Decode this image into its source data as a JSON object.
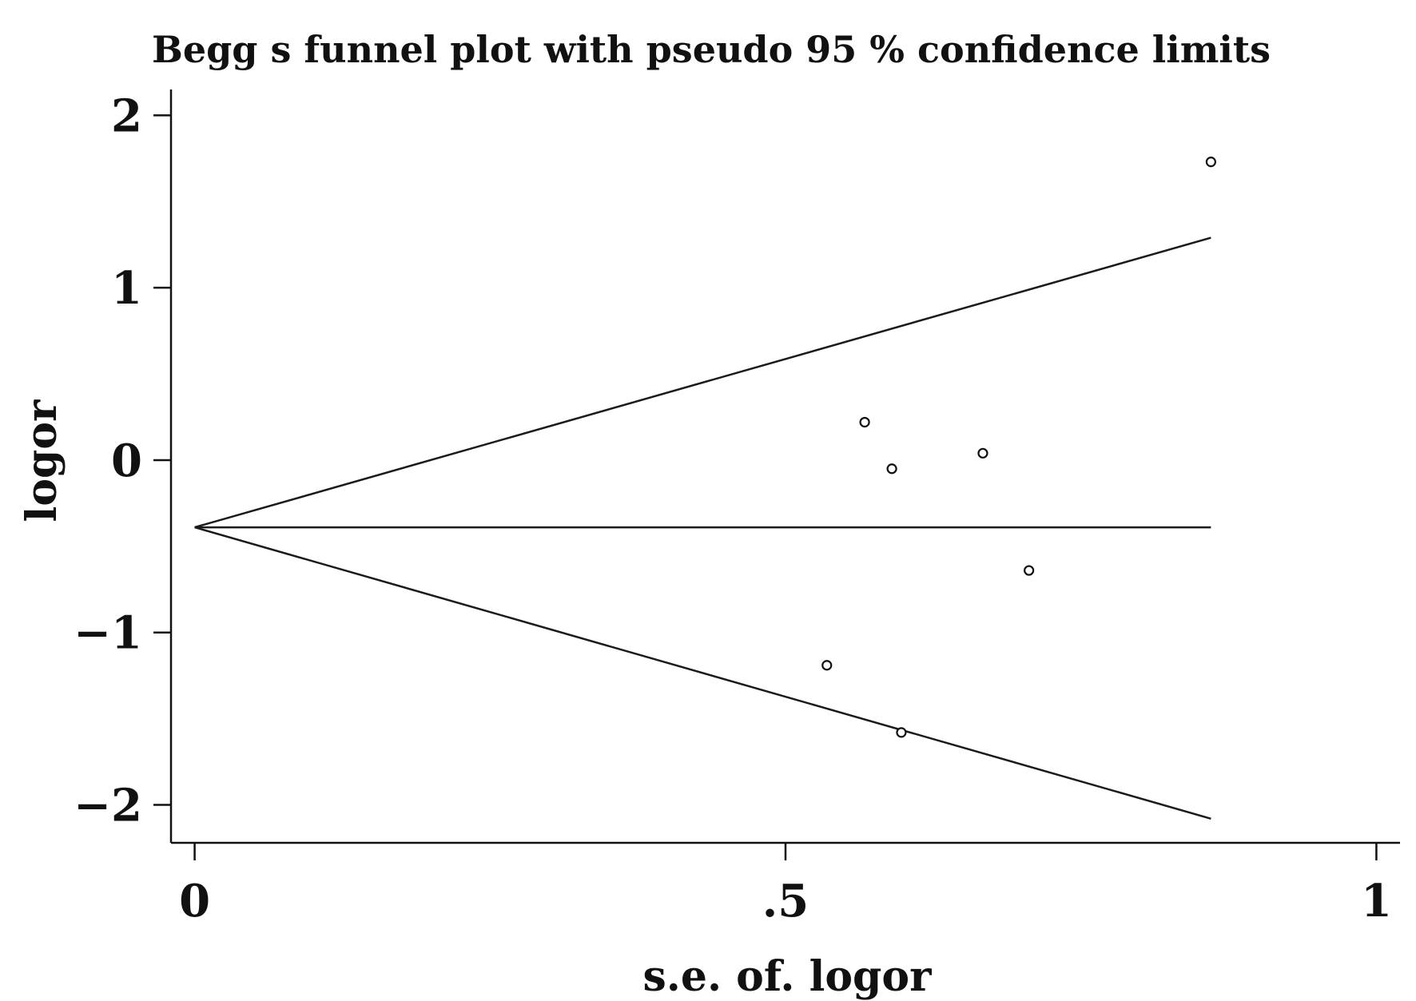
{
  "chart_data": {
    "type": "scatter",
    "title": "Begg  s funnel plot with pseudo 95 % confidence limits",
    "xlabel": "s.e. of. logor",
    "ylabel": "logor",
    "xlim": [
      -0.02,
      1.02
    ],
    "ylim": [
      -2.22,
      2.15
    ],
    "xticks": [
      0,
      0.5,
      1
    ],
    "xtick_labels": [
      "0",
      ".5",
      "1"
    ],
    "yticks": [
      2,
      1,
      0,
      -1,
      -2
    ],
    "ytick_labels": [
      "2",
      "1",
      "0",
      "−1",
      "−2"
    ],
    "grid": false,
    "legend": "none",
    "pooled_estimate": -0.39,
    "funnel_max_se": 0.86,
    "funnel": {
      "apex": {
        "x": 0,
        "y": -0.39
      },
      "upper_end": {
        "x": 0.86,
        "y": 1.29
      },
      "center_end": {
        "x": 0.86,
        "y": -0.39
      },
      "lower_end": {
        "x": 0.86,
        "y": -2.08
      }
    },
    "points": [
      {
        "x": 0.86,
        "y": 1.73
      },
      {
        "x": 0.567,
        "y": 0.22
      },
      {
        "x": 0.59,
        "y": -0.05
      },
      {
        "x": 0.667,
        "y": 0.04
      },
      {
        "x": 0.706,
        "y": -0.64
      },
      {
        "x": 0.535,
        "y": -1.19
      },
      {
        "x": 0.598,
        "y": -1.58
      }
    ],
    "colors": {
      "ink": "#111111",
      "background": "#ffffff"
    }
  }
}
